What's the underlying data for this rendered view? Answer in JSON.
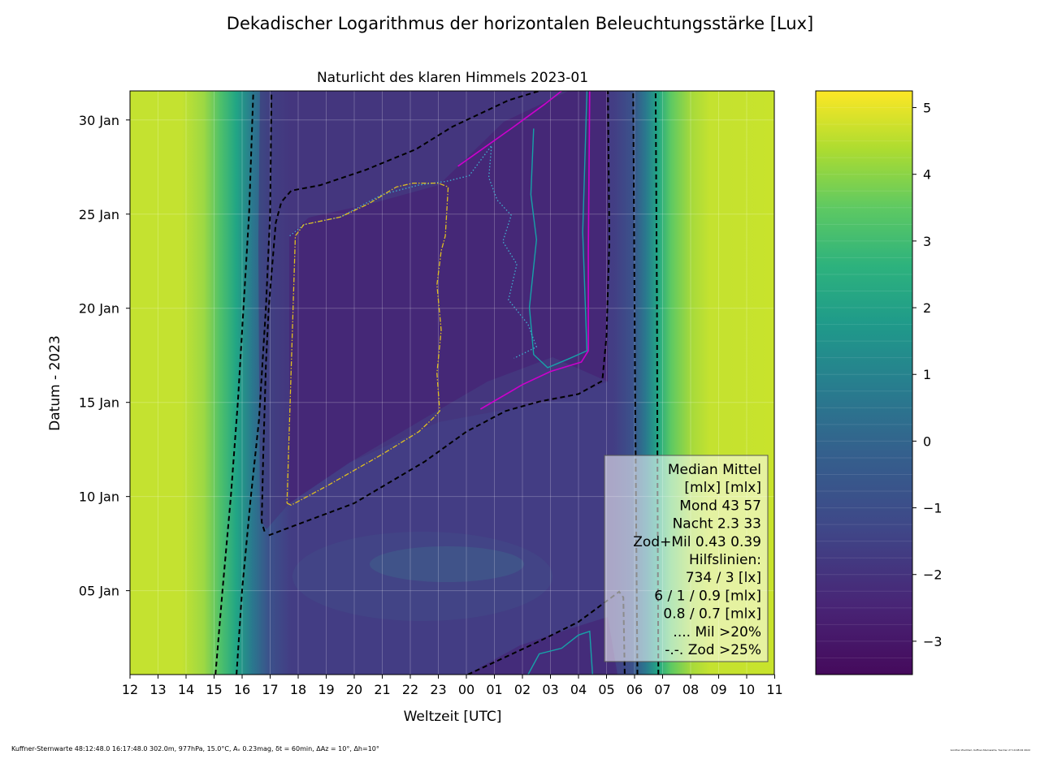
{
  "suptitle": "Dekadischer Logarithmus der horizontalen Beleuchtungsstärke [Lux]",
  "chart_data": {
    "type": "heatmap",
    "title": "Naturlicht des klaren Himmels 2023-01",
    "xlabel": "Weltzeit [UTC]",
    "ylabel": "Datum - 2023",
    "x_ticks": [
      "12",
      "13",
      "14",
      "15",
      "16",
      "17",
      "18",
      "19",
      "20",
      "21",
      "22",
      "23",
      "00",
      "01",
      "02",
      "03",
      "04",
      "05",
      "06",
      "07",
      "08",
      "09",
      "10",
      "11"
    ],
    "y_ticks": [
      {
        "label": "05 Jan",
        "day": 5
      },
      {
        "label": "10 Jan",
        "day": 10
      },
      {
        "label": "15 Jan",
        "day": 15
      },
      {
        "label": "20 Jan",
        "day": 20
      },
      {
        "label": "25 Jan",
        "day": 25
      },
      {
        "label": "30 Jan",
        "day": 30
      }
    ],
    "ylim_days": [
      0.5,
      31.5
    ],
    "grid": true,
    "colorbar": {
      "ticks": [
        "5",
        "4",
        "3",
        "2",
        "1",
        "0",
        "−1",
        "−2",
        "−3"
      ],
      "tick_values": [
        5,
        4,
        3,
        2,
        1,
        0,
        -1,
        -2,
        -3
      ],
      "range": [
        -3.5,
        5.25
      ],
      "colormap": "viridis"
    },
    "contours": {
      "day_boundary_734lx": [
        {
          "hour": 15.05,
          "day": 0.5
        },
        {
          "hour": 15.3,
          "day": 5
        },
        {
          "hour": 15.6,
          "day": 10
        },
        {
          "hour": 15.85,
          "day": 15
        },
        {
          "hour": 16.05,
          "day": 20
        },
        {
          "hour": 16.25,
          "day": 25
        },
        {
          "hour": 16.4,
          "day": 31.5
        }
      ],
      "day_boundary_3lx": [
        {
          "hour": 15.8,
          "day": 0.5
        },
        {
          "hour": 16.0,
          "day": 5
        },
        {
          "hour": 16.3,
          "day": 9.8
        },
        {
          "hour": 16.6,
          "day": 14
        },
        {
          "hour": 16.85,
          "day": 20
        },
        {
          "hour": 17.0,
          "day": 25
        },
        {
          "hour": 17.05,
          "day": 31.5
        }
      ],
      "night_boundary_734lx": [
        {
          "hour": 30.85,
          "day": 0.5
        },
        {
          "hour": 30.82,
          "day": 10
        },
        {
          "hour": 30.8,
          "day": 20
        },
        {
          "hour": 30.75,
          "day": 31.5
        }
      ],
      "night_boundary_3lx": [
        {
          "hour": 30.1,
          "day": 0.5
        },
        {
          "hour": 30.05,
          "day": 10
        },
        {
          "hour": 30.0,
          "day": 20
        },
        {
          "hour": 29.95,
          "day": 31.5
        }
      ],
      "moon_6mlx": [
        {
          "hour": 16.8,
          "day": 8.1
        },
        {
          "hour": 16.7,
          "day": 8.6
        },
        {
          "hour": 16.75,
          "day": 12
        },
        {
          "hour": 16.85,
          "day": 17
        },
        {
          "hour": 16.95,
          "day": 20
        },
        {
          "hour": 17.2,
          "day": 24.5
        },
        {
          "hour": 17.4,
          "day": 25.6
        },
        {
          "hour": 17.75,
          "day": 26.2
        },
        {
          "hour": 18.8,
          "day": 26.5
        },
        {
          "hour": 20.4,
          "day": 27.3
        },
        {
          "hour": 22.2,
          "day": 28.4
        },
        {
          "hour": 23.5,
          "day": 29.6
        },
        {
          "hour": 25.5,
          "day": 31.0
        },
        {
          "hour": 26.6,
          "day": 31.5
        }
      ],
      "moon_6mlx_lower": [
        {
          "hour": 16.95,
          "day": 7.9
        },
        {
          "hour": 20.0,
          "day": 9.6
        },
        {
          "hour": 22.5,
          "day": 11.8
        },
        {
          "hour": 24.0,
          "day": 13.4
        },
        {
          "hour": 25.4,
          "day": 14.5
        },
        {
          "hour": 26.6,
          "day": 15.0
        },
        {
          "hour": 28.0,
          "day": 15.4
        },
        {
          "hour": 28.85,
          "day": 16.1
        },
        {
          "hour": 29.0,
          "day": 18.5
        },
        {
          "hour": 29.1,
          "day": 23.5
        },
        {
          "hour": 29.05,
          "day": 31.5
        }
      ],
      "moon_6mlx_corner": [
        {
          "hour": 24.05,
          "day": 0.5
        },
        {
          "hour": 26.5,
          "day": 2.2
        },
        {
          "hour": 28.0,
          "day": 3.3
        },
        {
          "hour": 29.0,
          "day": 4.4
        },
        {
          "hour": 29.45,
          "day": 4.9
        },
        {
          "hour": 29.6,
          "day": 4.6
        },
        {
          "hour": 29.65,
          "day": 0.5
        }
      ],
      "nacht_1mlx": [
        {
          "hour": 24.5,
          "day": 14.6
        },
        {
          "hour": 26.0,
          "day": 15.9
        },
        {
          "hour": 27.0,
          "day": 16.6
        },
        {
          "hour": 28.1,
          "day": 17.1
        },
        {
          "hour": 28.35,
          "day": 17.7
        },
        {
          "hour": 28.35,
          "day": 23
        },
        {
          "hour": 28.4,
          "day": 31.5
        }
      ],
      "nacht_1mlx_top": [
        {
          "hour": 23.7,
          "day": 27.5
        },
        {
          "hour": 25.6,
          "day": 29.5
        },
        {
          "hour": 26.8,
          "day": 30.8
        },
        {
          "hour": 27.4,
          "day": 31.5
        }
      ],
      "zodmil_0p9mlx": [
        {
          "hour": 26.4,
          "day": 29.5
        },
        {
          "hour": 26.3,
          "day": 26
        },
        {
          "hour": 26.5,
          "day": 23.6
        },
        {
          "hour": 26.25,
          "day": 20
        },
        {
          "hour": 26.4,
          "day": 17.5
        },
        {
          "hour": 26.9,
          "day": 16.8
        },
        {
          "hour": 27.7,
          "day": 17.3
        },
        {
          "hour": 28.3,
          "day": 17.7
        },
        {
          "hour": 28.15,
          "day": 24
        },
        {
          "hour": 28.3,
          "day": 31.5
        }
      ],
      "zodmil_0p9mlx_corner": [
        {
          "hour": 26.2,
          "day": 0.5
        },
        {
          "hour": 26.6,
          "day": 1.6
        },
        {
          "hour": 27.4,
          "day": 1.9
        },
        {
          "hour": 28.0,
          "day": 2.6
        },
        {
          "hour": 28.4,
          "day": 2.8
        },
        {
          "hour": 28.5,
          "day": 0.5
        }
      ],
      "mil_gt20": [
        {
          "hour": 17.7,
          "day": 23.8
        },
        {
          "hour": 18.2,
          "day": 24.4
        },
        {
          "hour": 19.5,
          "day": 24.8
        },
        {
          "hour": 21.0,
          "day": 26
        },
        {
          "hour": 22.3,
          "day": 26.5
        },
        {
          "hour": 23.3,
          "day": 26.7
        },
        {
          "hour": 24.1,
          "day": 27
        },
        {
          "hour": 24.9,
          "day": 28.6
        },
        {
          "hour": 24.8,
          "day": 26.9
        },
        {
          "hour": 25.1,
          "day": 25.7
        },
        {
          "hour": 25.6,
          "day": 24.9
        },
        {
          "hour": 25.3,
          "day": 23.5
        },
        {
          "hour": 25.8,
          "day": 22.3
        },
        {
          "hour": 25.5,
          "day": 20.4
        },
        {
          "hour": 26.2,
          "day": 19.1
        },
        {
          "hour": 26.5,
          "day": 17.9
        },
        {
          "hour": 25.7,
          "day": 17.3
        }
      ],
      "zod_gt25": [
        {
          "hour": 17.6,
          "day": 9.6
        },
        {
          "hour": 17.75,
          "day": 9.5
        },
        {
          "hour": 19.0,
          "day": 10.5
        },
        {
          "hour": 21.0,
          "day": 12.2
        },
        {
          "hour": 22.3,
          "day": 13.4
        },
        {
          "hour": 22.8,
          "day": 14.1
        },
        {
          "hour": 23.05,
          "day": 14.5
        },
        {
          "hour": 22.95,
          "day": 16.5
        },
        {
          "hour": 23.1,
          "day": 18.8
        },
        {
          "hour": 22.95,
          "day": 21.2
        },
        {
          "hour": 23.1,
          "day": 23
        },
        {
          "hour": 23.25,
          "day": 23.8
        },
        {
          "hour": 23.35,
          "day": 26.4
        },
        {
          "hour": 23.0,
          "day": 26.6
        },
        {
          "hour": 22.1,
          "day": 26.6
        },
        {
          "hour": 21.5,
          "day": 26.4
        },
        {
          "hour": 20.5,
          "day": 25.5
        },
        {
          "hour": 19.5,
          "day": 24.8
        },
        {
          "hour": 18.2,
          "day": 24.4
        },
        {
          "hour": 17.9,
          "day": 23.8
        },
        {
          "hour": 17.6,
          "day": 9.6
        }
      ]
    }
  },
  "legend": {
    "lines": [
      "Median Mittel",
      "[mlx]  [mlx]",
      "Mond   43  57",
      "Nacht 2.3  33",
      "Zod+Mil 0.43  0.39",
      "Hilfslinien:",
      "734 / 3  [lx]",
      "6 /  1 / 0.9 [mlx]",
      "0.8 / 0.7 [mlx]",
      ".... Mil >20%",
      "-.-. Zod >25%"
    ]
  },
  "footer": {
    "left": "Kuffner-Sternwarte 48:12:48.0 16:17:48.0 302.0m,  977hPa, 15.0°C, Aᵥ 0.23mag, δt = 60min, ΔAz = 10°, Δh=10°",
    "right": "Günther Wuchterl, Kuffner-Sternwarte, Tue Dec 27 19:48:02 2022"
  },
  "colors": {
    "moon": "#cc00cc",
    "nacht": "#17a2a8",
    "mil": "#40b0d0",
    "zod": "#e0c020",
    "boundary": "#000000"
  }
}
